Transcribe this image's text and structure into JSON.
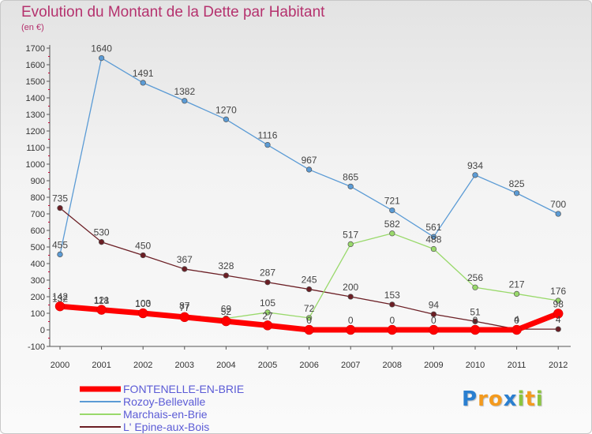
{
  "title": "Evolution du Montant de la Dette par Habitant",
  "subtitle": "(en €)",
  "logo": {
    "letters": [
      "P",
      "r",
      "o",
      "x",
      "i",
      "t",
      "i"
    ],
    "colors": [
      "#2a7fd0",
      "#f39a1e",
      "#f39a1e",
      "#2a7fd0",
      "#8bc53f",
      "#f39a1e",
      "#8bc53f"
    ]
  },
  "chart_data": {
    "type": "line",
    "categories": [
      "2000",
      "2001",
      "2002",
      "2003",
      "2004",
      "2005",
      "2006",
      "2007",
      "2008",
      "2009",
      "2010",
      "2011",
      "2012"
    ],
    "yticks": [
      "-100",
      "0",
      "100",
      "200",
      "300",
      "400",
      "500",
      "600",
      "700",
      "800",
      "900",
      "1000",
      "1100",
      "1200",
      "1300",
      "1400",
      "1500",
      "1600",
      "1700"
    ],
    "ylim": [
      -100,
      1700
    ],
    "grid": false,
    "legend_position": "bottom-left",
    "series": [
      {
        "name": "Rozoy-Bellevalle",
        "color": "#5b9bd5",
        "values": [
          455,
          1640,
          1491,
          1382,
          1270,
          1116,
          967,
          865,
          721,
          561,
          934,
          825,
          700
        ],
        "labels": [
          "455",
          "1640",
          "1491",
          "1382",
          "1270",
          "1116",
          "967",
          "865",
          "721",
          "561",
          "934",
          "825",
          "700"
        ]
      },
      {
        "name": "L' Epine-aux-Bois",
        "color": "#6b1e24",
        "values": [
          735,
          530,
          450,
          367,
          328,
          287,
          245,
          200,
          153,
          94,
          51,
          4,
          4
        ],
        "labels": [
          "735",
          "530",
          "450",
          "367",
          "328",
          "287",
          "245",
          "200",
          "153",
          "94",
          "51",
          "4",
          "4"
        ]
      },
      {
        "name": "Marchais-en-Brie",
        "color": "#99d96b",
        "values": [
          132,
          118,
          103,
          87,
          69,
          105,
          72,
          517,
          582,
          488,
          256,
          217,
          176
        ],
        "labels": [
          "132",
          "118",
          "103",
          "87",
          "69",
          "105",
          "72",
          "517",
          "582",
          "488",
          "256",
          "217",
          "176"
        ]
      },
      {
        "name": "FONTENELLE-EN-BRIE",
        "color": "#ff0000",
        "values": [
          142,
          121,
          100,
          77,
          52,
          27,
          0,
          0,
          0,
          0,
          0,
          0,
          98
        ],
        "labels": [
          "142",
          "121",
          "100",
          "77",
          "52",
          "27",
          "0",
          "0",
          "0",
          "0",
          "0",
          "0",
          "98"
        ]
      }
    ],
    "legend": [
      {
        "name": "FONTENELLE-EN-BRIE",
        "color": "#ff0000"
      },
      {
        "name": "Rozoy-Bellevalle",
        "color": "#5b9bd5"
      },
      {
        "name": "Marchais-en-Brie",
        "color": "#99d96b"
      },
      {
        "name": "L' Epine-aux-Bois",
        "color": "#6b1e24"
      }
    ]
  }
}
